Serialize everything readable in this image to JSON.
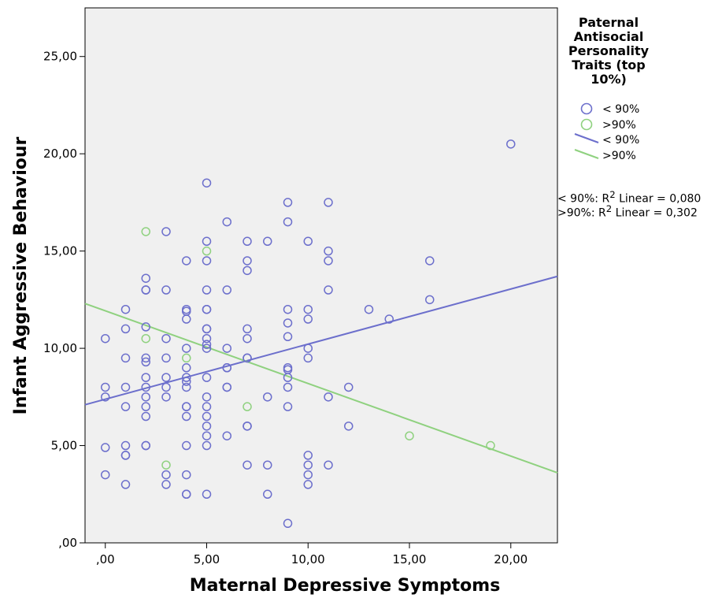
{
  "chart_data": {
    "type": "scatter",
    "xlabel": "Maternal Depressive Symptoms",
    "ylabel": "Infant Aggressive Behaviour",
    "xlim": [
      -1.0,
      22.3
    ],
    "ylim": [
      0,
      27.5
    ],
    "x_ticks": [
      0,
      5,
      10,
      15,
      20
    ],
    "x_tick_labels": [
      ",00",
      "5,00",
      "10,00",
      "15,00",
      "20,00"
    ],
    "y_ticks": [
      0,
      5,
      10,
      15,
      20,
      25
    ],
    "y_tick_labels": [
      ",00",
      "5,00",
      "10,00",
      "15,00",
      "20,00",
      "25,00"
    ],
    "legend": {
      "title": "Paternal Antisocial Personality Traits (top 10%)",
      "placement": "right",
      "entries": [
        {
          "label": "< 90%",
          "kind": "marker",
          "color": "#6c6fcc"
        },
        {
          "label": ">90%",
          "kind": "marker",
          "color": "#8fd17f"
        },
        {
          "label": "< 90%",
          "kind": "line",
          "color": "#6c6fcc"
        },
        {
          "label": ">90%",
          "kind": "line",
          "color": "#8fd17f"
        }
      ]
    },
    "r2_annotations": [
      {
        "group": "< 90%:",
        "text": " Linear = 0,080"
      },
      {
        "group": ">90%:",
        "text": " Linear = 0,302"
      }
    ],
    "series": [
      {
        "name": "< 90%",
        "color": "#6c6fcc",
        "fit_line": {
          "x1": -1.0,
          "y1": 7.1,
          "x2": 22.3,
          "y2": 13.7
        },
        "points": [
          [
            0,
            10.5
          ],
          [
            0,
            8
          ],
          [
            0,
            7.5
          ],
          [
            0,
            4.9
          ],
          [
            0,
            3.5
          ],
          [
            1,
            12
          ],
          [
            1,
            11
          ],
          [
            1,
            9.5
          ],
          [
            1,
            8
          ],
          [
            1,
            7
          ],
          [
            1,
            5
          ],
          [
            1,
            4.5
          ],
          [
            1,
            4.5
          ],
          [
            1,
            3
          ],
          [
            2,
            13.6
          ],
          [
            2,
            13
          ],
          [
            2,
            13
          ],
          [
            2,
            11.1
          ],
          [
            2,
            9.5
          ],
          [
            2,
            9.3
          ],
          [
            2,
            8.5
          ],
          [
            2,
            8
          ],
          [
            2,
            7.5
          ],
          [
            2,
            7
          ],
          [
            2,
            6.5
          ],
          [
            2,
            5
          ],
          [
            2,
            5
          ],
          [
            3,
            16
          ],
          [
            3,
            13
          ],
          [
            3,
            10.5
          ],
          [
            3,
            9.5
          ],
          [
            3,
            8.5
          ],
          [
            3,
            8
          ],
          [
            3,
            7.5
          ],
          [
            3,
            3.5
          ],
          [
            3,
            3
          ],
          [
            4,
            14.5
          ],
          [
            4,
            12
          ],
          [
            4,
            11.5
          ],
          [
            4,
            11.9
          ],
          [
            4,
            10
          ],
          [
            4,
            9
          ],
          [
            4,
            8.5
          ],
          [
            4,
            8.3
          ],
          [
            4,
            8
          ],
          [
            4,
            7
          ],
          [
            4,
            7
          ],
          [
            4,
            6.5
          ],
          [
            4,
            5
          ],
          [
            4,
            3.5
          ],
          [
            4,
            2.5
          ],
          [
            4,
            2.5
          ],
          [
            5,
            18.5
          ],
          [
            5,
            15.5
          ],
          [
            5,
            14.5
          ],
          [
            5,
            13
          ],
          [
            5,
            12
          ],
          [
            5,
            12
          ],
          [
            5,
            11
          ],
          [
            5,
            11
          ],
          [
            5,
            10.5
          ],
          [
            5,
            10.2
          ],
          [
            5,
            10
          ],
          [
            5,
            8.5
          ],
          [
            5,
            7.5
          ],
          [
            5,
            7
          ],
          [
            5,
            6.5
          ],
          [
            5,
            6
          ],
          [
            5,
            5.5
          ],
          [
            5,
            5
          ],
          [
            5,
            2.5
          ],
          [
            6,
            16.5
          ],
          [
            6,
            13
          ],
          [
            6,
            10
          ],
          [
            6,
            9
          ],
          [
            6,
            9
          ],
          [
            6,
            8
          ],
          [
            6,
            8
          ],
          [
            6,
            5.5
          ],
          [
            7,
            15.5
          ],
          [
            7,
            14.5
          ],
          [
            7,
            14
          ],
          [
            7,
            11
          ],
          [
            7,
            10.5
          ],
          [
            7,
            9.5
          ],
          [
            7,
            9.5
          ],
          [
            7,
            6
          ],
          [
            7,
            6
          ],
          [
            7,
            4
          ],
          [
            8,
            15.5
          ],
          [
            8,
            7.5
          ],
          [
            8,
            4
          ],
          [
            8,
            2.5
          ],
          [
            9,
            17.5
          ],
          [
            9,
            16.5
          ],
          [
            9,
            12
          ],
          [
            9,
            11.3
          ],
          [
            9,
            10.6
          ],
          [
            9,
            9
          ],
          [
            9,
            8.9
          ],
          [
            9,
            8.5
          ],
          [
            9,
            8
          ],
          [
            9,
            7
          ],
          [
            9,
            1
          ],
          [
            10,
            15.5
          ],
          [
            10,
            12
          ],
          [
            10,
            11.5
          ],
          [
            10,
            10
          ],
          [
            10,
            9.5
          ],
          [
            10,
            4.5
          ],
          [
            10,
            4
          ],
          [
            10,
            3.5
          ],
          [
            10,
            3
          ],
          [
            11,
            17.5
          ],
          [
            11,
            15
          ],
          [
            11,
            14.5
          ],
          [
            11,
            13
          ],
          [
            11,
            7.5
          ],
          [
            11,
            4
          ],
          [
            12,
            8
          ],
          [
            12,
            6
          ],
          [
            13,
            12
          ],
          [
            14,
            11.5
          ],
          [
            16,
            14.5
          ],
          [
            16,
            12.5
          ],
          [
            20,
            20.5
          ]
        ]
      },
      {
        "name": ">90%",
        "color": "#8fd17f",
        "fit_line": {
          "x1": -1.0,
          "y1": 12.3,
          "x2": 22.3,
          "y2": 3.6
        },
        "points": [
          [
            2,
            16
          ],
          [
            2,
            10.5
          ],
          [
            3,
            4
          ],
          [
            4,
            9.5
          ],
          [
            5,
            15
          ],
          [
            7,
            7
          ],
          [
            15,
            5.5
          ],
          [
            19,
            5
          ]
        ]
      }
    ]
  }
}
